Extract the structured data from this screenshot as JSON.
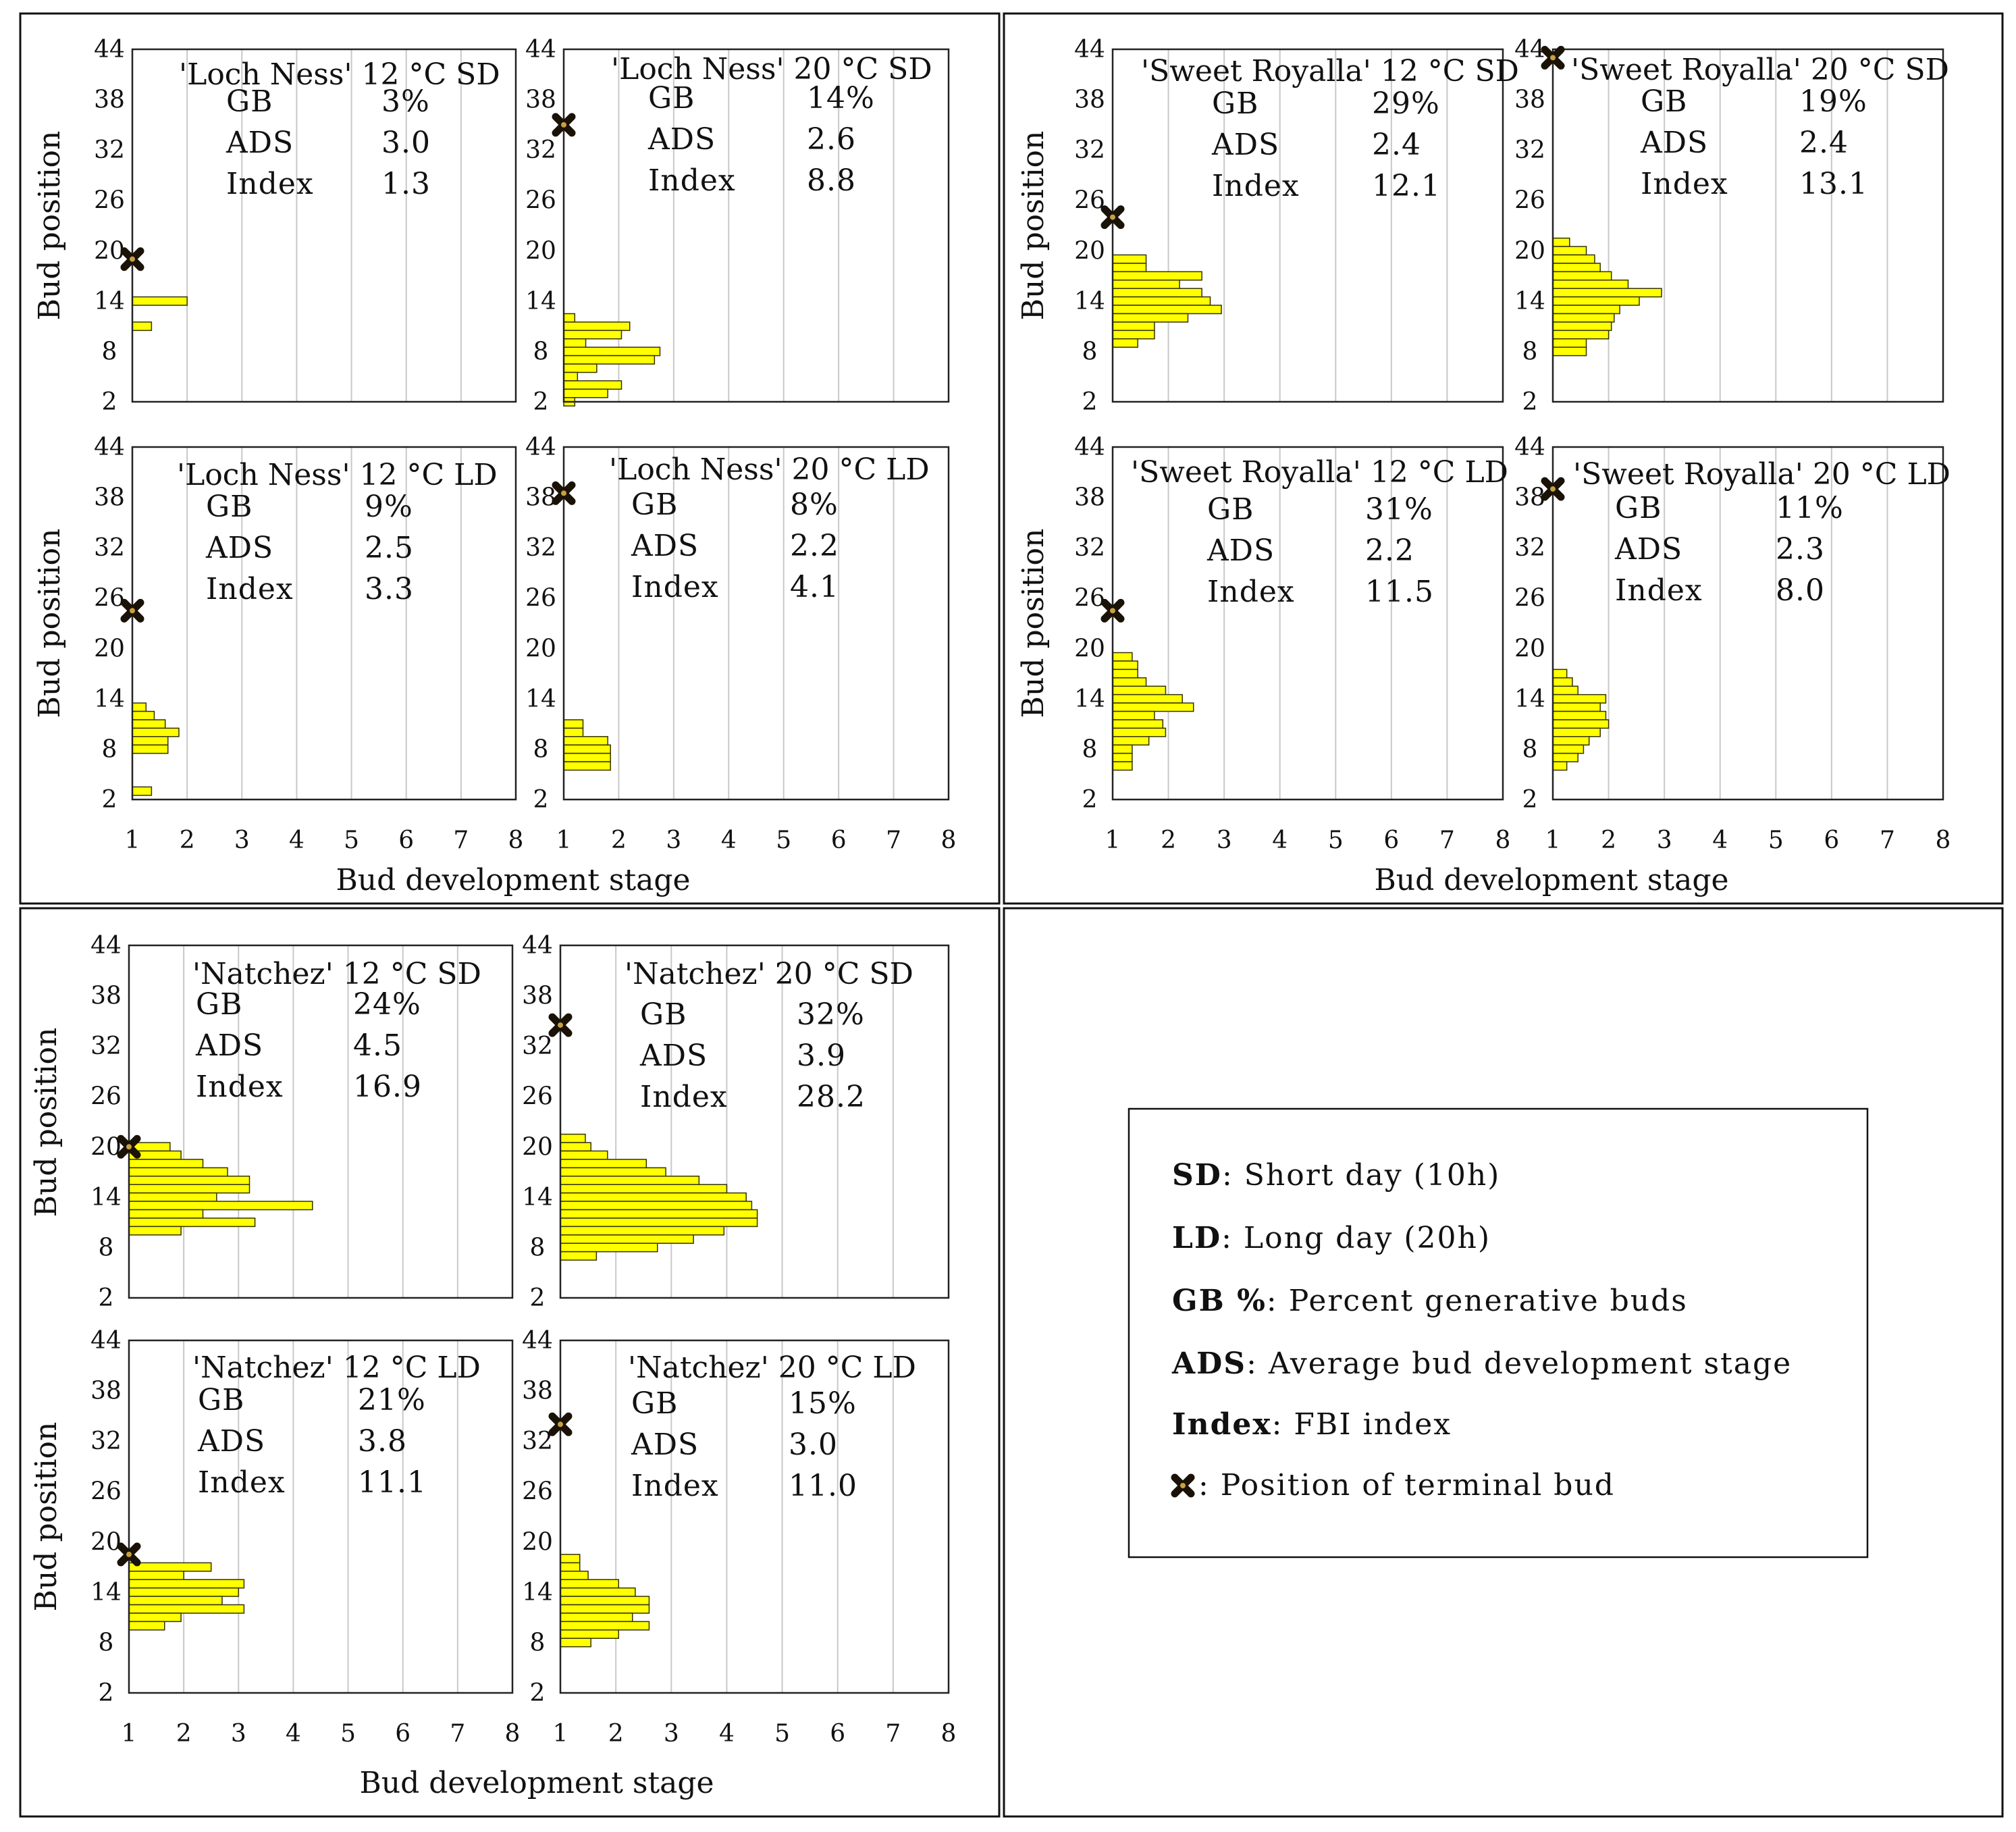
{
  "axes": {
    "ylabel": "Bud position",
    "xlabel": "Bud development stage",
    "yticks": [
      "2",
      "8",
      "14",
      "20",
      "26",
      "32",
      "38",
      "44"
    ],
    "xticks": [
      "1",
      "2",
      "3",
      "4",
      "5",
      "6",
      "7",
      "8"
    ]
  },
  "stat_labels": {
    "gb": "GB",
    "ads": "ADS",
    "index": "Index"
  },
  "legend": {
    "items": [
      {
        "key": "SD",
        "text": ": Short day (10h)"
      },
      {
        "key": "LD",
        "text": ": Long day (20h)"
      },
      {
        "key": "GB %",
        "text": ": Percent generative buds"
      },
      {
        "key": "ADS",
        "text": ": Average bud development stage"
      },
      {
        "key": "Index",
        "text": ": FBI index"
      },
      {
        "key": "",
        "text": ": Position of terminal bud"
      }
    ]
  },
  "colors": {
    "bar": "#ffff00",
    "bar_edge": "#333300",
    "grid": "#c8c8c8",
    "terminal": "#1a1206"
  },
  "chart_data": [
    {
      "type": "bar",
      "orientation": "horizontal",
      "title": "'Loch Ness' 12 °C SD",
      "gb": "3%",
      "ads": "3.0",
      "index": "1.3",
      "xlim": [
        1,
        8
      ],
      "ylim": [
        2,
        44
      ],
      "terminal_bud": 19,
      "bars": [
        {
          "pos": 14,
          "stage": 2.0
        },
        {
          "pos": 11,
          "stage": 1.35
        }
      ]
    },
    {
      "type": "bar",
      "orientation": "horizontal",
      "title": "'Loch Ness' 20 °C SD",
      "gb": "14%",
      "ads": "2.6",
      "index": "8.8",
      "xlim": [
        1,
        8
      ],
      "ylim": [
        2,
        44
      ],
      "terminal_bud": 35,
      "bars": [
        {
          "pos": 12,
          "stage": 1.2
        },
        {
          "pos": 11,
          "stage": 2.2
        },
        {
          "pos": 10,
          "stage": 2.05
        },
        {
          "pos": 9,
          "stage": 1.4
        },
        {
          "pos": 8,
          "stage": 2.75
        },
        {
          "pos": 7,
          "stage": 2.65
        },
        {
          "pos": 6,
          "stage": 1.6
        },
        {
          "pos": 5,
          "stage": 1.25
        },
        {
          "pos": 4,
          "stage": 2.05
        },
        {
          "pos": 3,
          "stage": 1.8
        },
        {
          "pos": 2,
          "stage": 1.2
        }
      ]
    },
    {
      "type": "bar",
      "orientation": "horizontal",
      "title": "'Sweet Royalla' 12 °C SD",
      "gb": "29%",
      "ads": "2.4",
      "index": "12.1",
      "xlim": [
        1,
        8
      ],
      "ylim": [
        2,
        44
      ],
      "terminal_bud": 24,
      "bars": [
        {
          "pos": 19,
          "stage": 1.6
        },
        {
          "pos": 18,
          "stage": 1.6
        },
        {
          "pos": 17,
          "stage": 2.6
        },
        {
          "pos": 16,
          "stage": 2.2
        },
        {
          "pos": 15,
          "stage": 2.6
        },
        {
          "pos": 14,
          "stage": 2.75
        },
        {
          "pos": 13,
          "stage": 2.95
        },
        {
          "pos": 12,
          "stage": 2.35
        },
        {
          "pos": 11,
          "stage": 1.75
        },
        {
          "pos": 10,
          "stage": 1.75
        },
        {
          "pos": 9,
          "stage": 1.45
        }
      ]
    },
    {
      "type": "bar",
      "orientation": "horizontal",
      "title": "'Sweet Royalla' 20 °C SD",
      "gb": "19%",
      "ads": "2.4",
      "index": "13.1",
      "xlim": [
        1,
        8
      ],
      "ylim": [
        2,
        44
      ],
      "terminal_bud": 43,
      "bars": [
        {
          "pos": 21,
          "stage": 1.3
        },
        {
          "pos": 20,
          "stage": 1.6
        },
        {
          "pos": 19,
          "stage": 1.75
        },
        {
          "pos": 18,
          "stage": 1.85
        },
        {
          "pos": 17,
          "stage": 2.05
        },
        {
          "pos": 16,
          "stage": 2.35
        },
        {
          "pos": 15,
          "stage": 2.95
        },
        {
          "pos": 14,
          "stage": 2.55
        },
        {
          "pos": 13,
          "stage": 2.2
        },
        {
          "pos": 12,
          "stage": 2.1
        },
        {
          "pos": 11,
          "stage": 2.05
        },
        {
          "pos": 10,
          "stage": 2.0
        },
        {
          "pos": 9,
          "stage": 1.6
        },
        {
          "pos": 8,
          "stage": 1.6
        }
      ]
    },
    {
      "type": "bar",
      "orientation": "horizontal",
      "title": "'Loch Ness' 12 °C LD",
      "gb": "9%",
      "ads": "2.5",
      "index": "3.3",
      "xlim": [
        1,
        8
      ],
      "ylim": [
        2,
        44
      ],
      "terminal_bud": 24.5,
      "bars": [
        {
          "pos": 13,
          "stage": 1.25
        },
        {
          "pos": 12,
          "stage": 1.4
        },
        {
          "pos": 11,
          "stage": 1.6
        },
        {
          "pos": 10,
          "stage": 1.85
        },
        {
          "pos": 9,
          "stage": 1.65
        },
        {
          "pos": 8,
          "stage": 1.65
        },
        {
          "pos": 3,
          "stage": 1.35
        }
      ]
    },
    {
      "type": "bar",
      "orientation": "horizontal",
      "title": "'Loch Ness' 20 °C LD",
      "gb": "8%",
      "ads": "2.2",
      "index": "4.1",
      "xlim": [
        1,
        8
      ],
      "ylim": [
        2,
        44
      ],
      "terminal_bud": 38.5,
      "bars": [
        {
          "pos": 11,
          "stage": 1.35
        },
        {
          "pos": 10,
          "stage": 1.35
        },
        {
          "pos": 9,
          "stage": 1.8
        },
        {
          "pos": 8,
          "stage": 1.85
        },
        {
          "pos": 7,
          "stage": 1.85
        },
        {
          "pos": 6,
          "stage": 1.85
        }
      ]
    },
    {
      "type": "bar",
      "orientation": "horizontal",
      "title": "'Sweet Royalla' 12 °C LD",
      "gb": "31%",
      "ads": "2.2",
      "index": "11.5",
      "xlim": [
        1,
        8
      ],
      "ylim": [
        2,
        44
      ],
      "terminal_bud": 24.5,
      "bars": [
        {
          "pos": 19,
          "stage": 1.35
        },
        {
          "pos": 18,
          "stage": 1.45
        },
        {
          "pos": 17,
          "stage": 1.45
        },
        {
          "pos": 16,
          "stage": 1.6
        },
        {
          "pos": 15,
          "stage": 1.95
        },
        {
          "pos": 14,
          "stage": 2.25
        },
        {
          "pos": 13,
          "stage": 2.45
        },
        {
          "pos": 12,
          "stage": 1.75
        },
        {
          "pos": 11,
          "stage": 1.9
        },
        {
          "pos": 10,
          "stage": 1.95
        },
        {
          "pos": 9,
          "stage": 1.65
        },
        {
          "pos": 8,
          "stage": 1.35
        },
        {
          "pos": 7,
          "stage": 1.35
        },
        {
          "pos": 6,
          "stage": 1.35
        }
      ]
    },
    {
      "type": "bar",
      "orientation": "horizontal",
      "title": "'Sweet Royalla' 20 °C LD",
      "gb": "11%",
      "ads": "2.3",
      "index": "8.0",
      "xlim": [
        1,
        8
      ],
      "ylim": [
        2,
        44
      ],
      "terminal_bud": 39,
      "bars": [
        {
          "pos": 17,
          "stage": 1.25
        },
        {
          "pos": 16,
          "stage": 1.35
        },
        {
          "pos": 15,
          "stage": 1.45
        },
        {
          "pos": 14,
          "stage": 1.95
        },
        {
          "pos": 13,
          "stage": 1.85
        },
        {
          "pos": 12,
          "stage": 1.95
        },
        {
          "pos": 11,
          "stage": 2.0
        },
        {
          "pos": 10,
          "stage": 1.85
        },
        {
          "pos": 9,
          "stage": 1.65
        },
        {
          "pos": 8,
          "stage": 1.55
        },
        {
          "pos": 7,
          "stage": 1.45
        },
        {
          "pos": 6,
          "stage": 1.25
        }
      ]
    },
    {
      "type": "bar",
      "orientation": "horizontal",
      "title": "'Natchez' 12 °C SD",
      "gb": "24%",
      "ads": "4.5",
      "index": "16.9",
      "xlim": [
        1,
        8
      ],
      "ylim": [
        2,
        44
      ],
      "terminal_bud": 20,
      "bars": [
        {
          "pos": 20,
          "stage": 1.75
        },
        {
          "pos": 19,
          "stage": 1.95
        },
        {
          "pos": 18,
          "stage": 2.35
        },
        {
          "pos": 17,
          "stage": 2.8
        },
        {
          "pos": 16,
          "stage": 3.2
        },
        {
          "pos": 15,
          "stage": 3.2
        },
        {
          "pos": 14,
          "stage": 2.6
        },
        {
          "pos": 13,
          "stage": 4.35
        },
        {
          "pos": 12,
          "stage": 2.35
        },
        {
          "pos": 11,
          "stage": 3.3
        },
        {
          "pos": 10,
          "stage": 1.95
        }
      ]
    },
    {
      "type": "bar",
      "orientation": "horizontal",
      "title": "'Natchez' 20 °C SD",
      "gb": "32%",
      "ads": "3.9",
      "index": "28.2",
      "xlim": [
        1,
        8
      ],
      "ylim": [
        2,
        44
      ],
      "terminal_bud": 34.5,
      "bars": [
        {
          "pos": 21,
          "stage": 1.45
        },
        {
          "pos": 20,
          "stage": 1.55
        },
        {
          "pos": 19,
          "stage": 1.85
        },
        {
          "pos": 18,
          "stage": 2.55
        },
        {
          "pos": 17,
          "stage": 2.9
        },
        {
          "pos": 16,
          "stage": 3.5
        },
        {
          "pos": 15,
          "stage": 4.0
        },
        {
          "pos": 14,
          "stage": 4.35
        },
        {
          "pos": 13,
          "stage": 4.45
        },
        {
          "pos": 12,
          "stage": 4.55
        },
        {
          "pos": 11,
          "stage": 4.55
        },
        {
          "pos": 10,
          "stage": 3.95
        },
        {
          "pos": 9,
          "stage": 3.4
        },
        {
          "pos": 8,
          "stage": 2.75
        },
        {
          "pos": 7,
          "stage": 1.65
        }
      ]
    },
    {
      "type": "bar",
      "orientation": "horizontal",
      "title": "'Natchez' 12 °C LD",
      "gb": "21%",
      "ads": "3.8",
      "index": "11.1",
      "xlim": [
        1,
        8
      ],
      "ylim": [
        2,
        44
      ],
      "terminal_bud": 18.5,
      "bars": [
        {
          "pos": 17,
          "stage": 2.5
        },
        {
          "pos": 16,
          "stage": 2.0
        },
        {
          "pos": 15,
          "stage": 3.1
        },
        {
          "pos": 14,
          "stage": 3.0
        },
        {
          "pos": 13,
          "stage": 2.7
        },
        {
          "pos": 12,
          "stage": 3.1
        },
        {
          "pos": 11,
          "stage": 1.95
        },
        {
          "pos": 10,
          "stage": 1.65
        }
      ]
    },
    {
      "type": "bar",
      "orientation": "horizontal",
      "title": "'Natchez' 20 °C LD",
      "gb": "15%",
      "ads": "3.0",
      "index": "11.0",
      "xlim": [
        1,
        8
      ],
      "ylim": [
        2,
        44
      ],
      "terminal_bud": 34,
      "bars": [
        {
          "pos": 18,
          "stage": 1.35
        },
        {
          "pos": 17,
          "stage": 1.35
        },
        {
          "pos": 16,
          "stage": 1.5
        },
        {
          "pos": 15,
          "stage": 2.05
        },
        {
          "pos": 14,
          "stage": 2.35
        },
        {
          "pos": 13,
          "stage": 2.6
        },
        {
          "pos": 12,
          "stage": 2.6
        },
        {
          "pos": 11,
          "stage": 2.3
        },
        {
          "pos": 10,
          "stage": 2.6
        },
        {
          "pos": 9,
          "stage": 2.05
        },
        {
          "pos": 8,
          "stage": 1.55
        }
      ]
    }
  ]
}
